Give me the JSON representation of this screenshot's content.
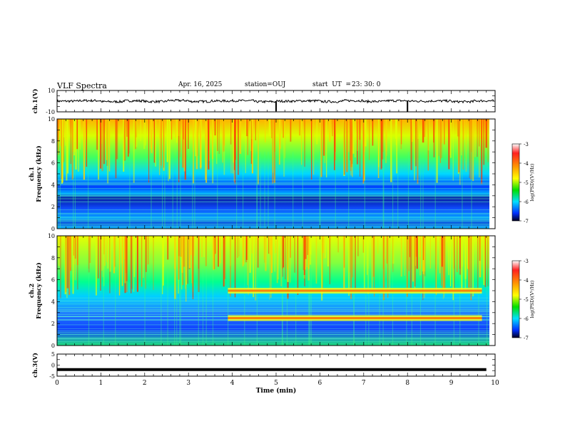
{
  "header": {
    "title": "VLF Spectra",
    "date": "Apr. 16, 2025",
    "station": "station=OUJ",
    "start_label": "start  UT  =",
    "start_time": "23: 30: 0"
  },
  "colors": {
    "waveform": "#000000",
    "axis": "#000000",
    "background": "#ffffff"
  },
  "chart_data": [
    {
      "type": "line",
      "ylabel": "ch.1(V)",
      "ylim": [
        -10,
        10
      ],
      "yticks": [
        "10",
        "-10"
      ],
      "x": [
        0,
        0.5,
        1.0,
        1.5,
        2.0,
        2.5,
        3.0,
        3.5,
        4.0,
        4.5,
        5.0,
        5.5,
        6.0,
        6.5,
        7.0,
        7.5,
        8.0,
        8.5,
        9.0,
        9.5,
        9.8
      ],
      "y": [
        0,
        0.5,
        -0.5,
        0.3,
        -0.4,
        0.6,
        -0.3,
        0.2,
        0.4,
        -0.5,
        -9.5,
        0.3,
        -0.4,
        0.5,
        -0.3,
        0.4,
        -9.8,
        0.2,
        -0.5,
        0.3,
        0
      ]
    },
    {
      "type": "heatmap",
      "ylabel": "ch.1\nFrequency  (kHz)",
      "ylim": [
        0,
        10
      ],
      "yticks": [
        "0",
        "2",
        "4",
        "6",
        "8",
        "10"
      ],
      "colorbar": {
        "label": "log(PSD)(V²/Hz)",
        "range": [
          -7,
          -3
        ],
        "ticks": [
          "-3",
          "-4",
          "-5",
          "-6",
          "-7"
        ]
      }
    },
    {
      "type": "heatmap",
      "ylabel": "ch.2\nFrequency  (kHz)",
      "ylim": [
        0,
        10
      ],
      "yticks": [
        "0",
        "2",
        "4",
        "6",
        "8",
        "10"
      ],
      "bands_khz": [
        {
          "start_min": 3.9,
          "end_min": 9.7,
          "freq": 5.0
        },
        {
          "start_min": 3.9,
          "end_min": 9.7,
          "freq": 2.5
        }
      ],
      "colorbar": {
        "label": "log(PSD)(V²/Hz)",
        "range": [
          -7,
          -3
        ],
        "ticks": [
          "-3",
          "-4",
          "-5",
          "-6",
          "-7"
        ]
      }
    },
    {
      "type": "line",
      "ylabel": "ch.3(V)",
      "ylim": [
        -5,
        5
      ],
      "yticks": [
        "5",
        "0",
        "-5"
      ],
      "x": [
        0,
        9.8
      ],
      "y": [
        -2,
        -2
      ]
    }
  ],
  "x_axis": {
    "label": "Time  (min)",
    "range": [
      0,
      10
    ],
    "ticks": [
      "0",
      "1",
      "2",
      "3",
      "4",
      "5",
      "6",
      "7",
      "8",
      "9",
      "10"
    ]
  }
}
